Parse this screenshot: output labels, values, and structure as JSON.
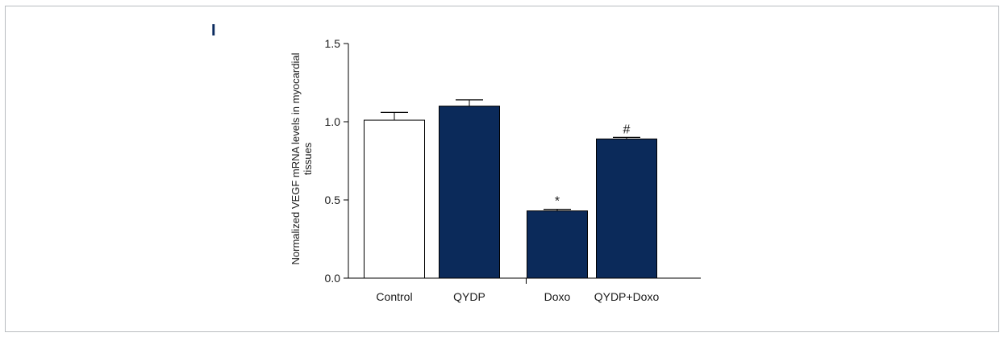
{
  "panel_label": "I",
  "chart_data": {
    "type": "bar",
    "categories": [
      "Control",
      "QYDP",
      "Doxo",
      "QYDP+Doxo"
    ],
    "values": [
      1.01,
      1.1,
      0.43,
      0.89
    ],
    "errors": [
      0.05,
      0.04,
      0.01,
      0.01
    ],
    "annotations": [
      "",
      "",
      "*",
      "#"
    ],
    "bar_colors": [
      "#ffffff",
      "#0b2a5a",
      "#0b2a5a",
      "#0b2a5a"
    ],
    "bar_stroke": "#000000",
    "ylim": [
      0,
      1.5
    ],
    "yticks": [
      "0.0",
      "0.5",
      "1.0",
      "1.5"
    ],
    "ylabel_lines": [
      "Normalized VEGF mRNA levels in myocardial",
      "tissues"
    ],
    "xlabel": "",
    "title": "",
    "grid": false
  }
}
